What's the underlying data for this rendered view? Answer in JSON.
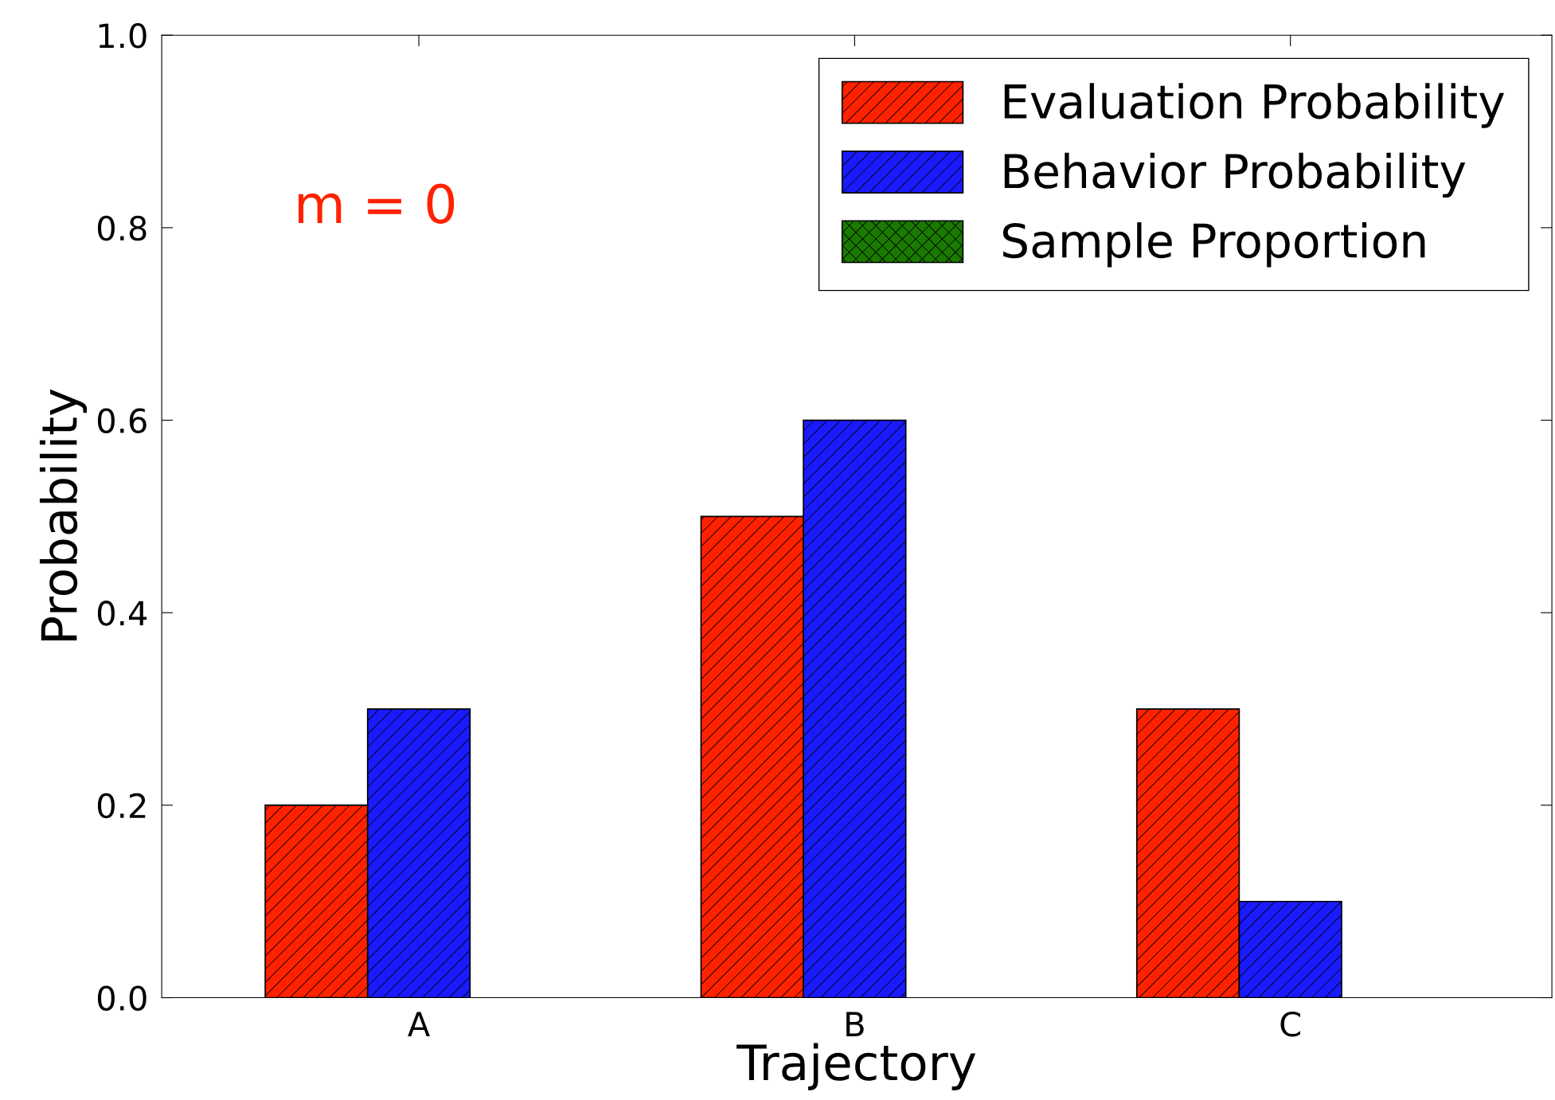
{
  "chart_data": {
    "type": "bar",
    "xlabel": "Trajectory",
    "ylabel": "Probability",
    "categories": [
      "A",
      "B",
      "C"
    ],
    "series": [
      {
        "name": "Evaluation Probability",
        "color": "#ff2200",
        "values": [
          0.2,
          0.5,
          0.3
        ]
      },
      {
        "name": "Behavior Probability",
        "color": "#1a1aff",
        "values": [
          0.3,
          0.6,
          0.1
        ]
      },
      {
        "name": "Sample Proportion",
        "color": "#1a7a00",
        "values": [
          null,
          null,
          null
        ]
      }
    ],
    "ylim": [
      0,
      1
    ],
    "yticks": [
      {
        "value": 0,
        "label": "0.0"
      },
      {
        "value": 0.2,
        "label": "0.2"
      },
      {
        "value": 0.4,
        "label": "0.4"
      },
      {
        "value": 0.6,
        "label": "0.6"
      },
      {
        "value": 0.8,
        "label": "0.8"
      },
      {
        "value": 1,
        "label": "1.0"
      }
    ],
    "grid": false,
    "legend": "top right",
    "annotations": [
      "m = 0"
    ]
  }
}
